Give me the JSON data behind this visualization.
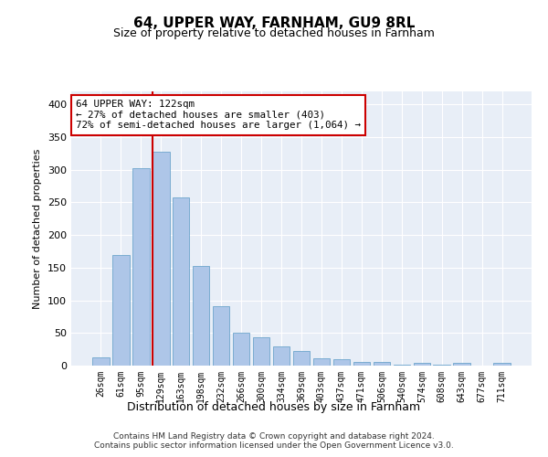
{
  "title": "64, UPPER WAY, FARNHAM, GU9 8RL",
  "subtitle": "Size of property relative to detached houses in Farnham",
  "xlabel": "Distribution of detached houses by size in Farnham",
  "ylabel": "Number of detached properties",
  "bar_values": [
    13,
    170,
    302,
    328,
    258,
    153,
    91,
    50,
    43,
    30,
    23,
    11,
    10,
    5,
    5,
    2,
    4,
    2,
    4,
    0,
    4
  ],
  "bar_labels": [
    "26sqm",
    "61sqm",
    "95sqm",
    "129sqm",
    "163sqm",
    "198sqm",
    "232sqm",
    "266sqm",
    "300sqm",
    "334sqm",
    "369sqm",
    "403sqm",
    "437sqm",
    "471sqm",
    "506sqm",
    "540sqm",
    "574sqm",
    "608sqm",
    "643sqm",
    "677sqm",
    "711sqm"
  ],
  "bar_color": "#aec6e8",
  "bar_edge_color": "#5a9bc5",
  "vline_x_index": 3,
  "annotation_text_line1": "64 UPPER WAY: 122sqm",
  "annotation_text_line2": "← 27% of detached houses are smaller (403)",
  "annotation_text_line3": "72% of semi-detached houses are larger (1,064) →",
  "annotation_box_color": "#ffffff",
  "annotation_box_edge": "#cc0000",
  "vline_color": "#cc0000",
  "ylim": [
    0,
    420
  ],
  "yticks": [
    0,
    50,
    100,
    150,
    200,
    250,
    300,
    350,
    400
  ],
  "background_color": "#e8eef7",
  "footer_line1": "Contains HM Land Registry data © Crown copyright and database right 2024.",
  "footer_line2": "Contains public sector information licensed under the Open Government Licence v3.0."
}
